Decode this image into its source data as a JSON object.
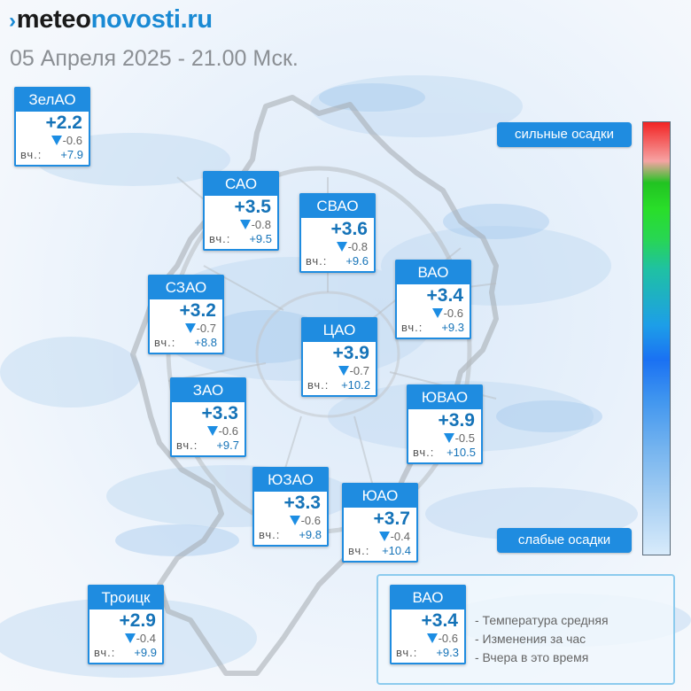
{
  "header": {
    "logo_part1": "meteo",
    "logo_part2": "novosti.ru",
    "date_line": "05 Апреля 2025 - 21.00 Мск."
  },
  "scale": {
    "high_label": "сильные осадки",
    "low_label": "слабые осадки"
  },
  "districts": [
    {
      "name": "ЗелАО",
      "temp": "+2.2",
      "change": "-0.6",
      "yesterday_label": "вч.:",
      "yesterday": "+7.9"
    },
    {
      "name": "САО",
      "temp": "+3.5",
      "change": "-0.8",
      "yesterday_label": "вч.:",
      "yesterday": "+9.5"
    },
    {
      "name": "СВАО",
      "temp": "+3.6",
      "change": "-0.8",
      "yesterday_label": "вч.:",
      "yesterday": "+9.6"
    },
    {
      "name": "ВАО",
      "temp": "+3.4",
      "change": "-0.6",
      "yesterday_label": "вч.:",
      "yesterday": "+9.3"
    },
    {
      "name": "СЗАО",
      "temp": "+3.2",
      "change": "-0.7",
      "yesterday_label": "вч.:",
      "yesterday": "+8.8"
    },
    {
      "name": "ЦАО",
      "temp": "+3.9",
      "change": "-0.7",
      "yesterday_label": "вч.:",
      "yesterday": "+10.2"
    },
    {
      "name": "ЗАО",
      "temp": "+3.3",
      "change": "-0.6",
      "yesterday_label": "вч.:",
      "yesterday": "+9.7"
    },
    {
      "name": "ЮВАО",
      "temp": "+3.9",
      "change": "-0.5",
      "yesterday_label": "вч.:",
      "yesterday": "+10.5"
    },
    {
      "name": "ЮЗАО",
      "temp": "+3.3",
      "change": "-0.6",
      "yesterday_label": "вч.:",
      "yesterday": "+9.8"
    },
    {
      "name": "ЮАО",
      "temp": "+3.7",
      "change": "-0.4",
      "yesterday_label": "вч.:",
      "yesterday": "+10.4"
    },
    {
      "name": "Троицк",
      "temp": "+2.9",
      "change": "-0.4",
      "yesterday_label": "вч.:",
      "yesterday": "+9.9"
    }
  ],
  "legend": {
    "sample": {
      "name": "ВАО",
      "temp": "+3.4",
      "change": "-0.6",
      "yesterday_label": "вч.:",
      "yesterday": "+9.3"
    },
    "lines": [
      "- Температура средняя",
      "- Изменения за час",
      "- Вчера в это время"
    ]
  },
  "colors": {
    "accent": "#1f8ce0",
    "temp_text": "#1573b8",
    "trend_down": "#1c8de3"
  }
}
